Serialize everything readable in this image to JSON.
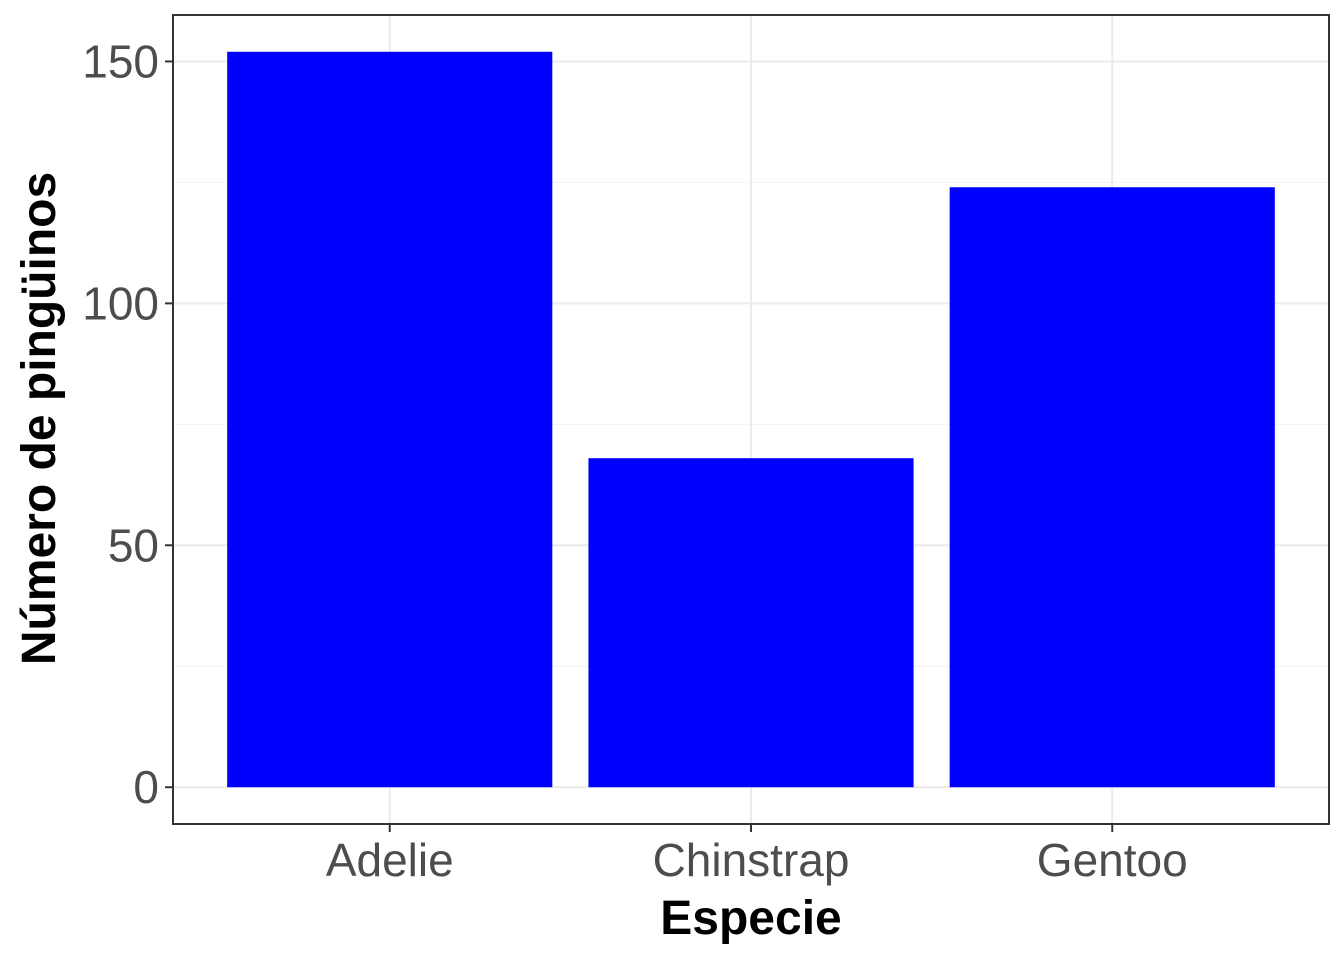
{
  "chart_data": {
    "type": "bar",
    "title": "",
    "xlabel": "Especie",
    "ylabel": "Número de pingüinos",
    "categories": [
      "Adelie",
      "Chinstrap",
      "Gentoo"
    ],
    "values": [
      152,
      68,
      124
    ],
    "ylim": [
      -7.6,
      159.6
    ],
    "yticks": [
      0,
      50,
      100,
      150
    ],
    "yticks_minor": [
      25,
      75,
      125
    ],
    "ytick_labels": [
      "0",
      "50",
      "100",
      "150"
    ],
    "bar_color": "#0000ff",
    "grid": true,
    "legend": "none",
    "theme": "bw"
  }
}
